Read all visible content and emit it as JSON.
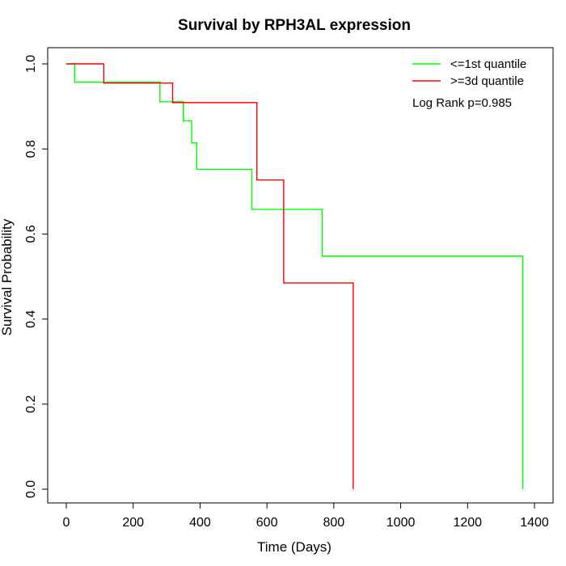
{
  "chart_data": {
    "type": "line",
    "title": "Survival by RPH3AL expression",
    "xlabel": "Time (Days)",
    "ylabel": "Survival Probability",
    "xlim": [
      0,
      1400
    ],
    "ylim": [
      0,
      1.0
    ],
    "x_ticks": [
      0,
      200,
      400,
      600,
      800,
      1000,
      1200,
      1400
    ],
    "x_tick_labels": [
      "0",
      "200",
      "400",
      "600",
      "800",
      "1000",
      "1200",
      "1400"
    ],
    "y_ticks": [
      0.0,
      0.2,
      0.4,
      0.6,
      0.8,
      1.0
    ],
    "y_tick_labels": [
      "0.0",
      "0.2",
      "0.4",
      "0.6",
      "0.8",
      "1.0"
    ],
    "grid": false,
    "legend_position": "top-right",
    "annotation": "Log Rank p=0.985",
    "series": [
      {
        "name": "<=1st quantile",
        "color": "#00ff00",
        "step": "post",
        "x": [
          0,
          25,
          280,
          350,
          375,
          390,
          555,
          765,
          1365,
          1365
        ],
        "y": [
          1.0,
          0.957,
          0.911,
          0.866,
          0.814,
          0.752,
          0.658,
          0.548,
          0.548,
          0.0
        ]
      },
      {
        "name": ">=3d quantile",
        "color": "#ff0000",
        "step": "post",
        "x": [
          0,
          112,
          318,
          570,
          650,
          858,
          858
        ],
        "y": [
          1.0,
          0.955,
          0.909,
          0.727,
          0.485,
          0.485,
          0.0
        ]
      }
    ]
  }
}
